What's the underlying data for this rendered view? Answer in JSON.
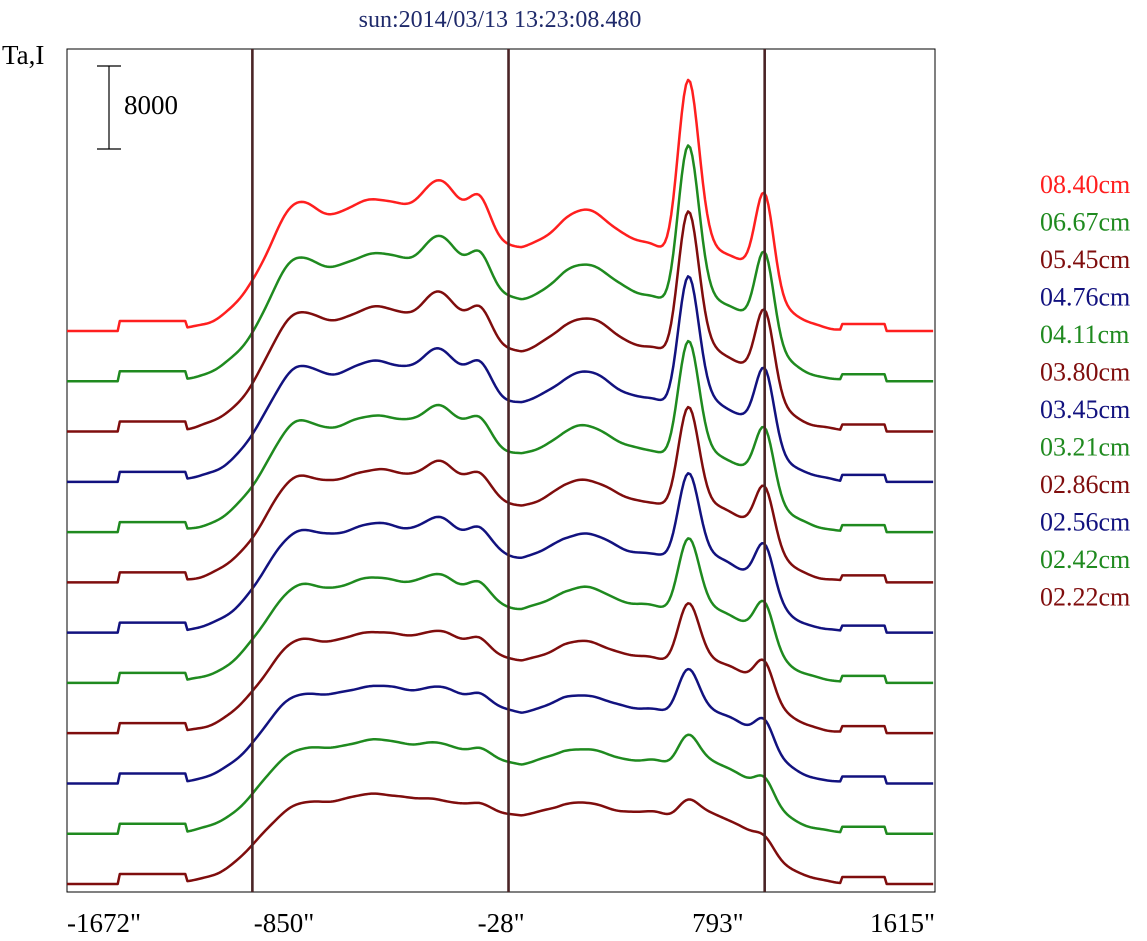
{
  "chart_data": {
    "type": "line",
    "title": "sun:2014/03/13 13:23:08.480",
    "ylabel": "Ta,I",
    "xlim": [
      -1672,
      1615
    ],
    "x_ticks": [
      -1672,
      -850,
      -28,
      793,
      1615
    ],
    "x_tick_labels": [
      "-1672\"",
      "-850\"",
      "-28\"",
      "793\"",
      "1615\""
    ],
    "vertical_markers": [
      -970,
      0,
      970
    ],
    "scale_bar": {
      "label": "8000",
      "value": 8000
    },
    "colors": {
      "title": "#1f2a6b",
      "frame": "#000000",
      "marker": "#4a2426"
    },
    "series": [
      {
        "name": "08.40cm",
        "color": "#ff1f1f"
      },
      {
        "name": "06.67cm",
        "color": "#1f8a1f"
      },
      {
        "name": "05.45cm",
        "color": "#7f0d0d"
      },
      {
        "name": "04.76cm",
        "color": "#12127f"
      },
      {
        "name": "04.11cm",
        "color": "#1f8a1f"
      },
      {
        "name": "03.80cm",
        "color": "#7f0d0d"
      },
      {
        "name": "03.45cm",
        "color": "#12127f"
      },
      {
        "name": "03.21cm",
        "color": "#1f8a1f"
      },
      {
        "name": "02.86cm",
        "color": "#7f0d0d"
      },
      {
        "name": "02.56cm",
        "color": "#12127f"
      },
      {
        "name": "02.42cm",
        "color": "#1f8a1f"
      },
      {
        "name": "02.22cm",
        "color": "#7f0d0d"
      }
    ]
  }
}
